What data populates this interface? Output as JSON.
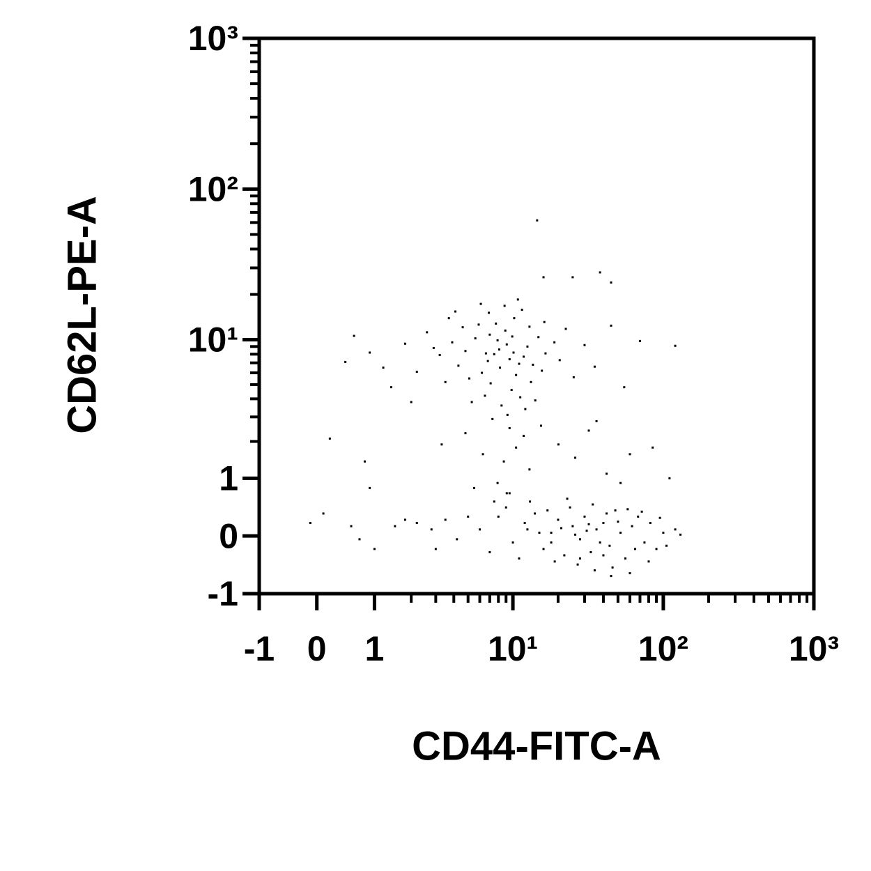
{
  "chart_data": {
    "type": "scatter",
    "scale": "asinh",
    "color": "#000000",
    "xlabel": "CD44-FITC-A",
    "ylabel": "CD62L-PE-A",
    "xlim": [
      -1,
      1000
    ],
    "ylim": [
      -1,
      1000
    ],
    "xticks": [
      -1,
      0,
      1,
      {
        "value": 10,
        "label": "10¹"
      },
      {
        "value": 100,
        "label": "10²"
      },
      {
        "value": 1000,
        "label": "10³"
      }
    ],
    "yticks": [
      -1,
      0,
      1,
      {
        "value": 10,
        "label": "10¹"
      },
      {
        "value": 100,
        "label": "10²"
      },
      {
        "value": 1000,
        "label": "10³"
      }
    ],
    "xminorticks": [
      2,
      3,
      4,
      5,
      6,
      7,
      8,
      9,
      20,
      30,
      40,
      50,
      60,
      70,
      80,
      90,
      200,
      300,
      400,
      500,
      600,
      700,
      800,
      900
    ],
    "yminorticks": [
      2,
      3,
      4,
      5,
      6,
      7,
      8,
      9,
      20,
      30,
      40,
      50,
      60,
      70,
      80,
      90,
      200,
      300,
      400,
      500,
      600,
      700,
      800,
      900
    ],
    "x": [
      7.5,
      8.2,
      6.8,
      9.1,
      10.5,
      5.6,
      11.8,
      7.1,
      8.9,
      12.5,
      4.8,
      6.2,
      9.8,
      13.6,
      7.7,
      5.1,
      3.9,
      14.8,
      10.2,
      6.5,
      8.4,
      11.2,
      4.3,
      3.2,
      2.6,
      16.5,
      12.9,
      9.5,
      7.9,
      5.9,
      6.9,
      11.5,
      13.2,
      15.6,
      3.5,
      2.9,
      4.6,
      18.9,
      20.5,
      9.2,
      12.1,
      14.1,
      7.3,
      5.3,
      2.2,
      1.8,
      1.4,
      0.9,
      0.6,
      0.45,
      4.1,
      8.8,
      10.8,
      6.1,
      22.5,
      25.4,
      3.7,
      16.2,
      9.9,
      8.1,
      7.0,
      10.1,
      11.0,
      6.6,
      2.0,
      1.2,
      30,
      35,
      45,
      55,
      70,
      120,
      45,
      38,
      25,
      16,
      14.5,
      9.5,
      10.5,
      8.7,
      11.8,
      7.9,
      12.9,
      9.1,
      15.4,
      20.1,
      26,
      32,
      42,
      36,
      52,
      60,
      85,
      110,
      6.3,
      4.8,
      3.3,
      5.5,
      0.9,
      0.8,
      0.2,
      6,
      8,
      10,
      12,
      14,
      16,
      18,
      20,
      22,
      25,
      28,
      30,
      33,
      36,
      40,
      44,
      48,
      52,
      56,
      62,
      68,
      75,
      82,
      90,
      100,
      120,
      5,
      4.2,
      3.5,
      2.8,
      2.2,
      1.8,
      1.5,
      3,
      7,
      9,
      11,
      13,
      15,
      17,
      19,
      21,
      24,
      27,
      31,
      34,
      38,
      42,
      46,
      50,
      58,
      65,
      72,
      80,
      95,
      105,
      130,
      45,
      60,
      28,
      35,
      0.1,
      -0.1,
      0.55,
      0.7,
      1.0,
      7.5,
      9.5,
      23,
      12.5,
      18,
      26,
      32,
      40
    ],
    "y": [
      8,
      6.5,
      7.2,
      9.3,
      5.8,
      10.2,
      7.7,
      5.1,
      11.5,
      9,
      8.4,
      6,
      4.6,
      6.8,
      12.8,
      5.5,
      9.6,
      10.4,
      13.9,
      4.2,
      3.6,
      4.1,
      6.7,
      7.9,
      11.2,
      8.1,
      12.2,
      7.4,
      9.9,
      12.6,
      15.1,
      15.8,
      5.2,
      6.2,
      5.2,
      8.8,
      12.1,
      9.6,
      7.3,
      3.1,
      3.4,
      3.9,
      2.9,
      3.8,
      6.1,
      9.4,
      4.8,
      8.2,
      10.6,
      7.1,
      15.4,
      16.8,
      18.5,
      17.3,
      11.8,
      5.6,
      13.9,
      13.1,
      10.5,
      8.6,
      10.8,
      8.2,
      6.9,
      8.1,
      3.8,
      6.5,
      9.2,
      6.6,
      12.4,
      4.8,
      9.8,
      9.1,
      24,
      28,
      26,
      26,
      62,
      2.5,
      1.8,
      1.4,
      2.2,
      0.9,
      1.2,
      0.7,
      2.6,
      1.9,
      1.5,
      2.4,
      1.1,
      2.8,
      0.9,
      1.6,
      1.8,
      1.0,
      1.6,
      2.3,
      1.9,
      0.8,
      0.8,
      1.4,
      2.1,
      0.1,
      0.3,
      -0.1,
      0.2,
      0.35,
      -0.2,
      0.05,
      0.25,
      -0.3,
      0.15,
      -0.05,
      0.3,
      -0.25,
      0.1,
      0.2,
      -0.15,
      0.4,
      0.05,
      -0.35,
      0.15,
      0.3,
      -0.1,
      0.2,
      -0.2,
      0.05,
      0.1,
      0.3,
      -0.05,
      0.25,
      0.1,
      0.2,
      0.25,
      0.15,
      -0.2,
      -0.25,
      0.45,
      -0.35,
      0.55,
      0.05,
      0.4,
      -0.4,
      0.12,
      0.45,
      -0.45,
      0.08,
      0.5,
      -0.1,
      0.35,
      -0.5,
      0.22,
      0.42,
      -0.2,
      0.38,
      -0.4,
      0.28,
      -0.15,
      0.02,
      -0.65,
      -0.6,
      -0.35,
      -0.55,
      0.35,
      0.2,
      0.15,
      -0.05,
      -0.2,
      0.55,
      0.7,
      0.6,
      0.1,
      -0.1,
      0.02,
      0.18,
      -0.3
    ]
  }
}
